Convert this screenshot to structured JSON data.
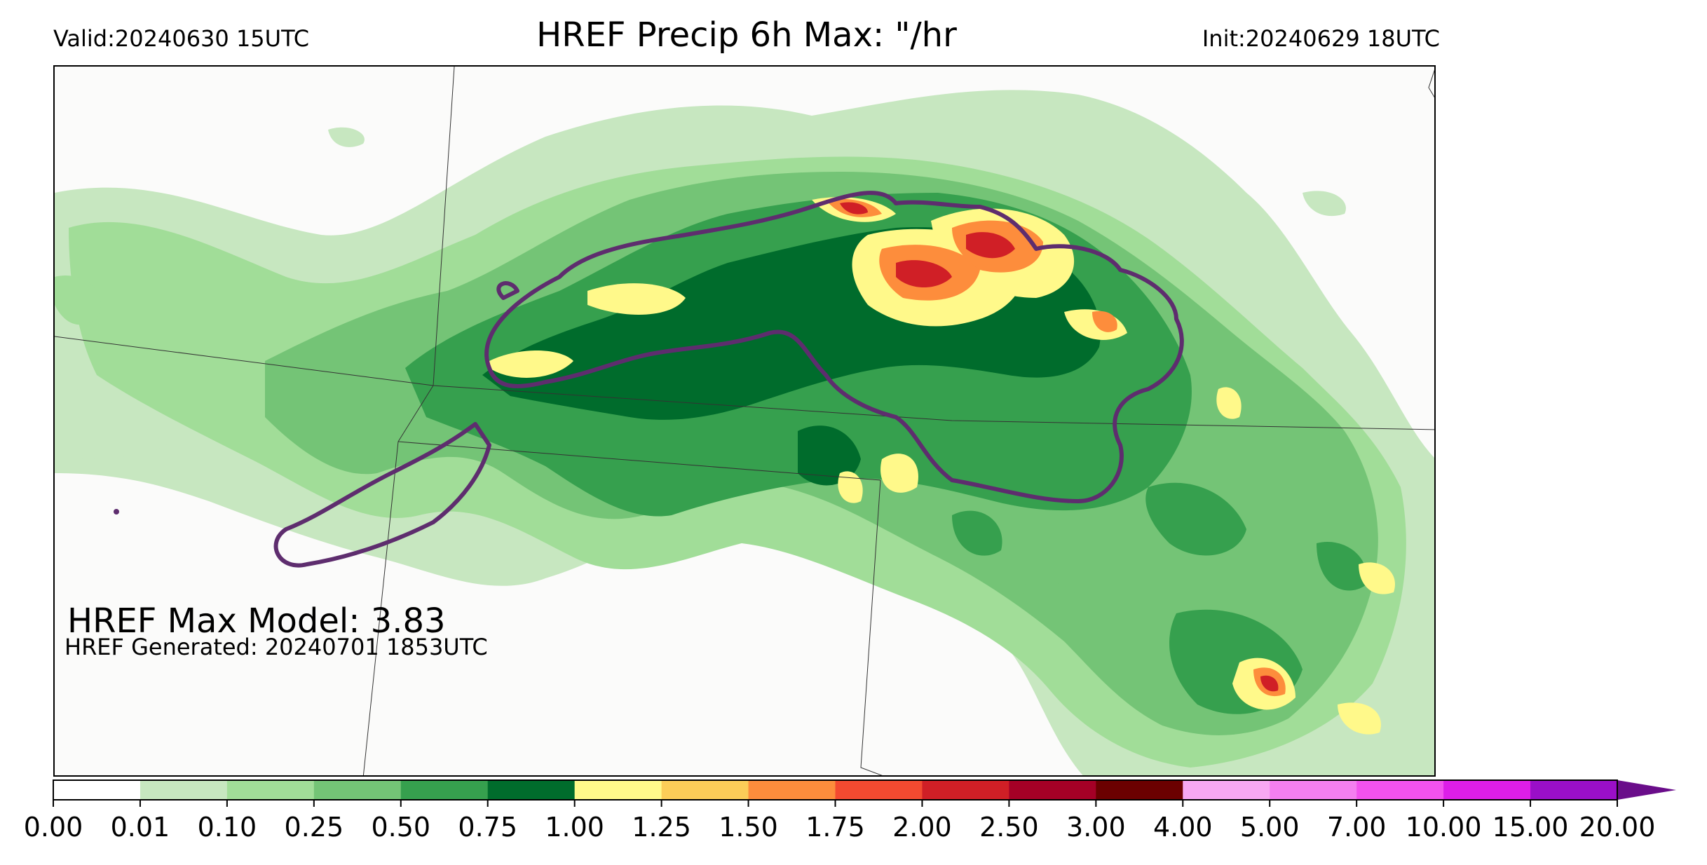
{
  "header": {
    "valid": "Valid:20240630 15UTC",
    "title": "HREF Precip 6h Max: \"/hr",
    "init": "Init:20240629 18UTC"
  },
  "annotations": {
    "max_model": "HREF Max Model: 3.83",
    "generated": "HREF Generated: 20240701 1853UTC"
  },
  "colorbar": {
    "ticks": [
      "0.00",
      "0.01",
      "0.10",
      "0.25",
      "0.50",
      "0.75",
      "1.00",
      "1.25",
      "1.50",
      "1.75",
      "2.00",
      "2.50",
      "3.00",
      "4.00",
      "5.00",
      "7.00",
      "10.00",
      "15.00",
      "20.00"
    ],
    "colors": [
      "#ffffff",
      "#c7e7c0",
      "#a1dd98",
      "#74c476",
      "#36a04e",
      "#006c2c",
      "#fff98a",
      "#fccd58",
      "#fd8d3c",
      "#f34a30",
      "#d01f26",
      "#a50026",
      "#6b0000",
      "#f7a8f2",
      "#f47ff0",
      "#f252ee",
      "#dd1ee8",
      "#9a0fc8"
    ],
    "extend_color": "#6a0d8a"
  },
  "map": {
    "frame_color": "#000000",
    "background_color": "#fbfbfa",
    "ensemble_contour_color": "#5e2d6e"
  }
}
